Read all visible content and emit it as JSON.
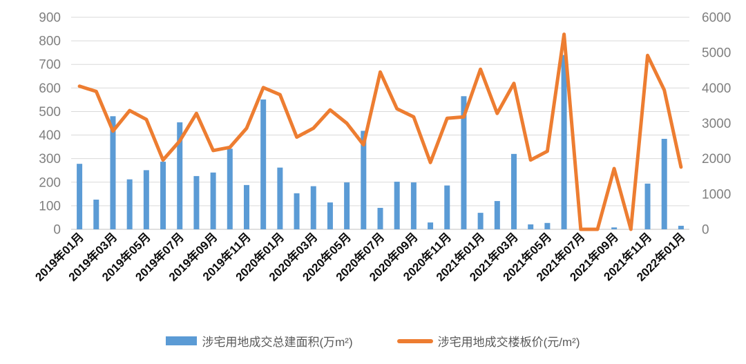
{
  "chart_data": {
    "type": "combo",
    "title": "",
    "categories": [
      "2019年01月",
      "2019年02月",
      "2019年03月",
      "2019年04月",
      "2019年05月",
      "2019年06月",
      "2019年07月",
      "2019年08月",
      "2019年09月",
      "2019年10月",
      "2019年11月",
      "2019年12月",
      "2020年01月",
      "2020年02月",
      "2020年03月",
      "2020年04月",
      "2020年05月",
      "2020年06月",
      "2020年07月",
      "2020年08月",
      "2020年09月",
      "2020年10月",
      "2020年11月",
      "2020年12月",
      "2021年01月",
      "2021年02月",
      "2021年03月",
      "2021年04月",
      "2021年05月",
      "2021年06月",
      "2021年07月",
      "2021年08月",
      "2021年09月",
      "2021年10月",
      "2021年11月",
      "2021年12月",
      "2022年01月"
    ],
    "x_tick_labels": [
      "2019年01月",
      "2019年03月",
      "2019年05月",
      "2019年07月",
      "2019年09月",
      "2019年11月",
      "2020年01月",
      "2020年03月",
      "2020年05月",
      "2020年07月",
      "2020年09月",
      "2020年11月",
      "2021年01月",
      "2021年03月",
      "2021年05月",
      "2021年07月",
      "2021年09月",
      "2021年11月",
      "2022年01月"
    ],
    "x_label_interval": 2,
    "series": [
      {
        "name": "涉宅用地成交总建面积(万m²)",
        "type": "bar",
        "axis": "left",
        "color": "#5B9BD5",
        "values": [
          278,
          126,
          480,
          212,
          251,
          287,
          454,
          226,
          241,
          342,
          188,
          551,
          262,
          153,
          183,
          114,
          199,
          418,
          91,
          202,
          199,
          29,
          186,
          565,
          70,
          120,
          320,
          21,
          27,
          740,
          0,
          0,
          8,
          0,
          194,
          384,
          15
        ]
      },
      {
        "name": "涉宅用地成交楼板价(元/m²)",
        "type": "line",
        "axis": "right",
        "color": "#ED7D31",
        "values": [
          4050,
          3900,
          2780,
          3360,
          3110,
          1960,
          2500,
          3280,
          2230,
          2320,
          2860,
          4010,
          3810,
          2610,
          2860,
          3380,
          3000,
          2390,
          4450,
          3410,
          3180,
          1890,
          3140,
          3180,
          4530,
          3280,
          4130,
          1960,
          2210,
          5520,
          0,
          0,
          1720,
          0,
          4920,
          3940,
          1760
        ]
      }
    ],
    "left_axis": {
      "min": 0,
      "max": 900,
      "step": 100,
      "ticks": [
        0,
        100,
        200,
        300,
        400,
        500,
        600,
        700,
        800,
        900
      ]
    },
    "right_axis": {
      "min": 0,
      "max": 6000,
      "step": 1000,
      "ticks": [
        0,
        1000,
        2000,
        3000,
        4000,
        5000,
        6000
      ]
    },
    "grid": true,
    "legend_position": "bottom"
  },
  "colors": {
    "bar": "#5B9BD5",
    "line": "#ED7D31",
    "grid": "#D9D9D9",
    "axis_line": "#BFBFBF",
    "axis_text": "#7F7F7F",
    "x_label_text": "#0D0D0D",
    "legend_text": "#595959",
    "background": "#FFFFFF"
  }
}
